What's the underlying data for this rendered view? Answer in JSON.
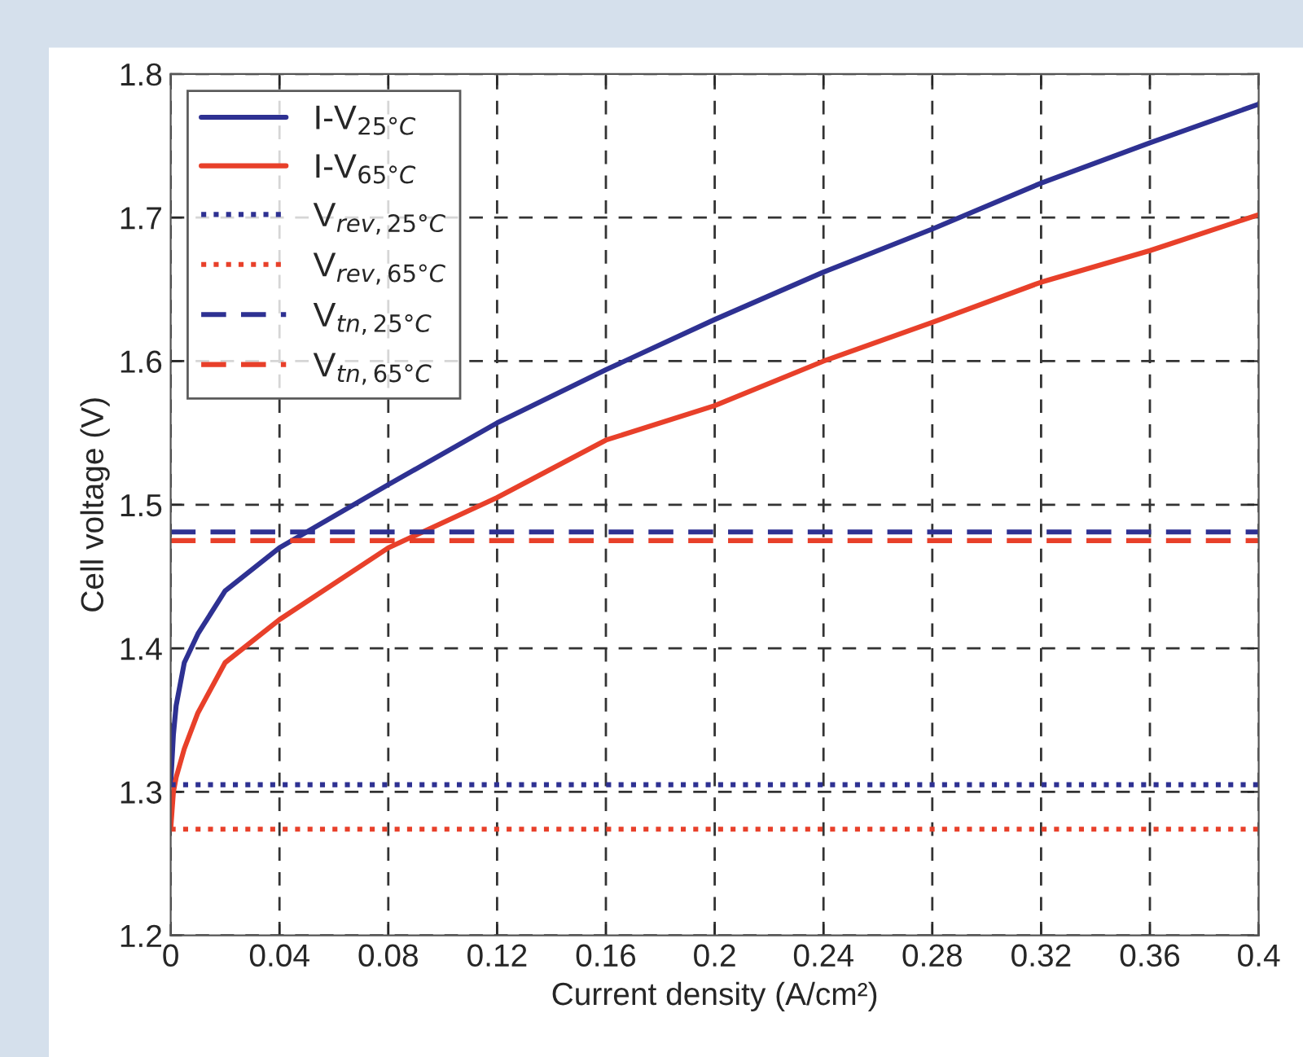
{
  "chart_data": {
    "type": "line",
    "xlabel": "Current density (A/cm²)",
    "ylabel": "Cell voltage (V)",
    "xlim": [
      0,
      0.4
    ],
    "ylim": [
      1.2,
      1.8
    ],
    "xticks": [
      0,
      0.04,
      0.08,
      0.12,
      0.16,
      0.2,
      0.24,
      0.28,
      0.32,
      0.36,
      0.4
    ],
    "yticks": [
      1.2,
      1.3,
      1.4,
      1.5,
      1.6,
      1.7,
      1.8
    ],
    "grid": true,
    "legend": "top left",
    "marker": "none",
    "series": [
      {
        "name": "I-V$_{25°C}$",
        "color": "#2e3192",
        "line_style": "solid",
        "x": [
          0,
          0.001,
          0.002,
          0.005,
          0.01,
          0.02,
          0.04,
          0.08,
          0.12,
          0.16,
          0.2,
          0.24,
          0.28,
          0.32,
          0.36,
          0.4
        ],
        "values": [
          1.305,
          1.34,
          1.36,
          1.39,
          1.41,
          1.44,
          1.47,
          1.514,
          1.557,
          1.594,
          1.629,
          1.662,
          1.692,
          1.724,
          1.752,
          1.779
        ]
      },
      {
        "name": "I-V$_{65°C}$",
        "color": "#e8402a",
        "line_style": "solid",
        "x": [
          0,
          0.001,
          0.002,
          0.005,
          0.01,
          0.02,
          0.04,
          0.08,
          0.12,
          0.16,
          0.2,
          0.24,
          0.28,
          0.32,
          0.36,
          0.4
        ],
        "values": [
          1.274,
          1.3,
          1.31,
          1.33,
          1.355,
          1.39,
          1.42,
          1.47,
          1.505,
          1.545,
          1.569,
          1.6,
          1.627,
          1.655,
          1.677,
          1.702
        ]
      },
      {
        "name": "V$_{rev,25°C}$",
        "color": "#2e3192",
        "line_style": "dotted",
        "x": [
          0,
          0.4
        ],
        "values": [
          1.305,
          1.305
        ]
      },
      {
        "name": "V$_{rev,65°C}$",
        "color": "#e8402a",
        "line_style": "dotted",
        "x": [
          0,
          0.4
        ],
        "values": [
          1.274,
          1.274
        ]
      },
      {
        "name": "V$_{tn,25°C}$",
        "color": "#2e3192",
        "line_style": "dashed",
        "x": [
          0,
          0.4
        ],
        "values": [
          1.481,
          1.481
        ]
      },
      {
        "name": "V$_{tn,65°C}$",
        "color": "#e8402a",
        "line_style": "dashed",
        "x": [
          0,
          0.4
        ],
        "values": [
          1.475,
          1.475
        ]
      }
    ]
  }
}
